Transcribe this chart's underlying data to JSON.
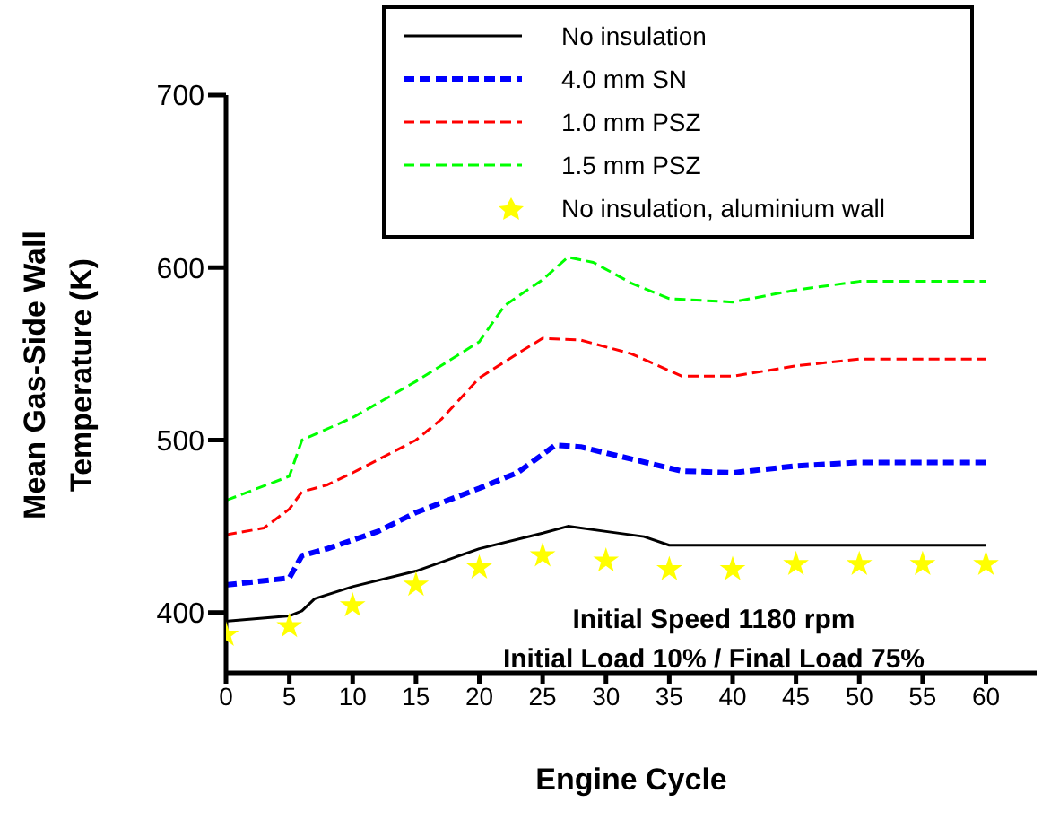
{
  "chart_data": {
    "type": "line",
    "xlabel": "Engine Cycle",
    "ylabel": "Mean Gas-Side Wall Temperature (K)",
    "xlim": [
      0,
      64
    ],
    "xticks": [
      0,
      5,
      10,
      15,
      20,
      25,
      30,
      35,
      40,
      45,
      50,
      55,
      60
    ],
    "ylim": [
      365,
      700
    ],
    "yticks": [
      400,
      500,
      600,
      700
    ],
    "grid": false,
    "legend": "top",
    "annotations": [
      "Initial Speed 1180 rpm",
      "Initial Load 10% / Final Load 75%"
    ],
    "series": [
      {
        "name": "No insulation",
        "color": "#000000",
        "line_style": "solid",
        "marker": "none",
        "x": [
          0,
          5,
          6,
          7,
          10,
          15,
          20,
          25,
          27,
          30,
          33,
          35,
          40,
          60
        ],
        "values": [
          395,
          398,
          401,
          408,
          415,
          424,
          437,
          446,
          450,
          447,
          444,
          439,
          439,
          439
        ]
      },
      {
        "name": "4.0 mm SN",
        "color": "#0000ff",
        "line_style": "dashed",
        "marker": "none",
        "x": [
          0,
          5,
          6,
          8,
          12,
          15,
          20,
          23,
          26,
          28,
          32,
          36,
          40,
          45,
          50,
          60
        ],
        "values": [
          416,
          420,
          433,
          437,
          447,
          458,
          472,
          481,
          497,
          496,
          489,
          482,
          481,
          485,
          487,
          487
        ]
      },
      {
        "name": "1.0 mm PSZ",
        "color": "#ff0000",
        "line_style": "dashed",
        "marker": "none",
        "x": [
          0,
          3,
          5,
          6,
          8,
          10,
          15,
          17,
          20,
          23,
          25,
          28,
          32,
          36,
          40,
          45,
          50,
          60
        ],
        "values": [
          445,
          449,
          460,
          470,
          474,
          481,
          500,
          512,
          536,
          550,
          559,
          558,
          550,
          537,
          537,
          543,
          547,
          547
        ]
      },
      {
        "name": "1.5 mm PSZ",
        "color": "#00ff00",
        "line_style": "dashed",
        "marker": "none",
        "x": [
          0,
          5,
          6,
          10,
          15,
          20,
          22,
          25,
          27,
          29,
          32,
          35,
          40,
          45,
          50,
          60
        ],
        "values": [
          465,
          479,
          500,
          513,
          534,
          557,
          578,
          593,
          606,
          603,
          591,
          582,
          580,
          587,
          592,
          592
        ]
      },
      {
        "name": "No insulation, aluminium wall",
        "type": "scatter",
        "color": "#ffff00",
        "marker": "star",
        "x": [
          0,
          5,
          10,
          15,
          20,
          25,
          30,
          35,
          40,
          45,
          50,
          55,
          60
        ],
        "values": [
          387,
          392,
          404,
          416,
          426,
          433,
          430,
          425,
          425,
          428,
          428,
          428,
          428
        ]
      }
    ]
  }
}
